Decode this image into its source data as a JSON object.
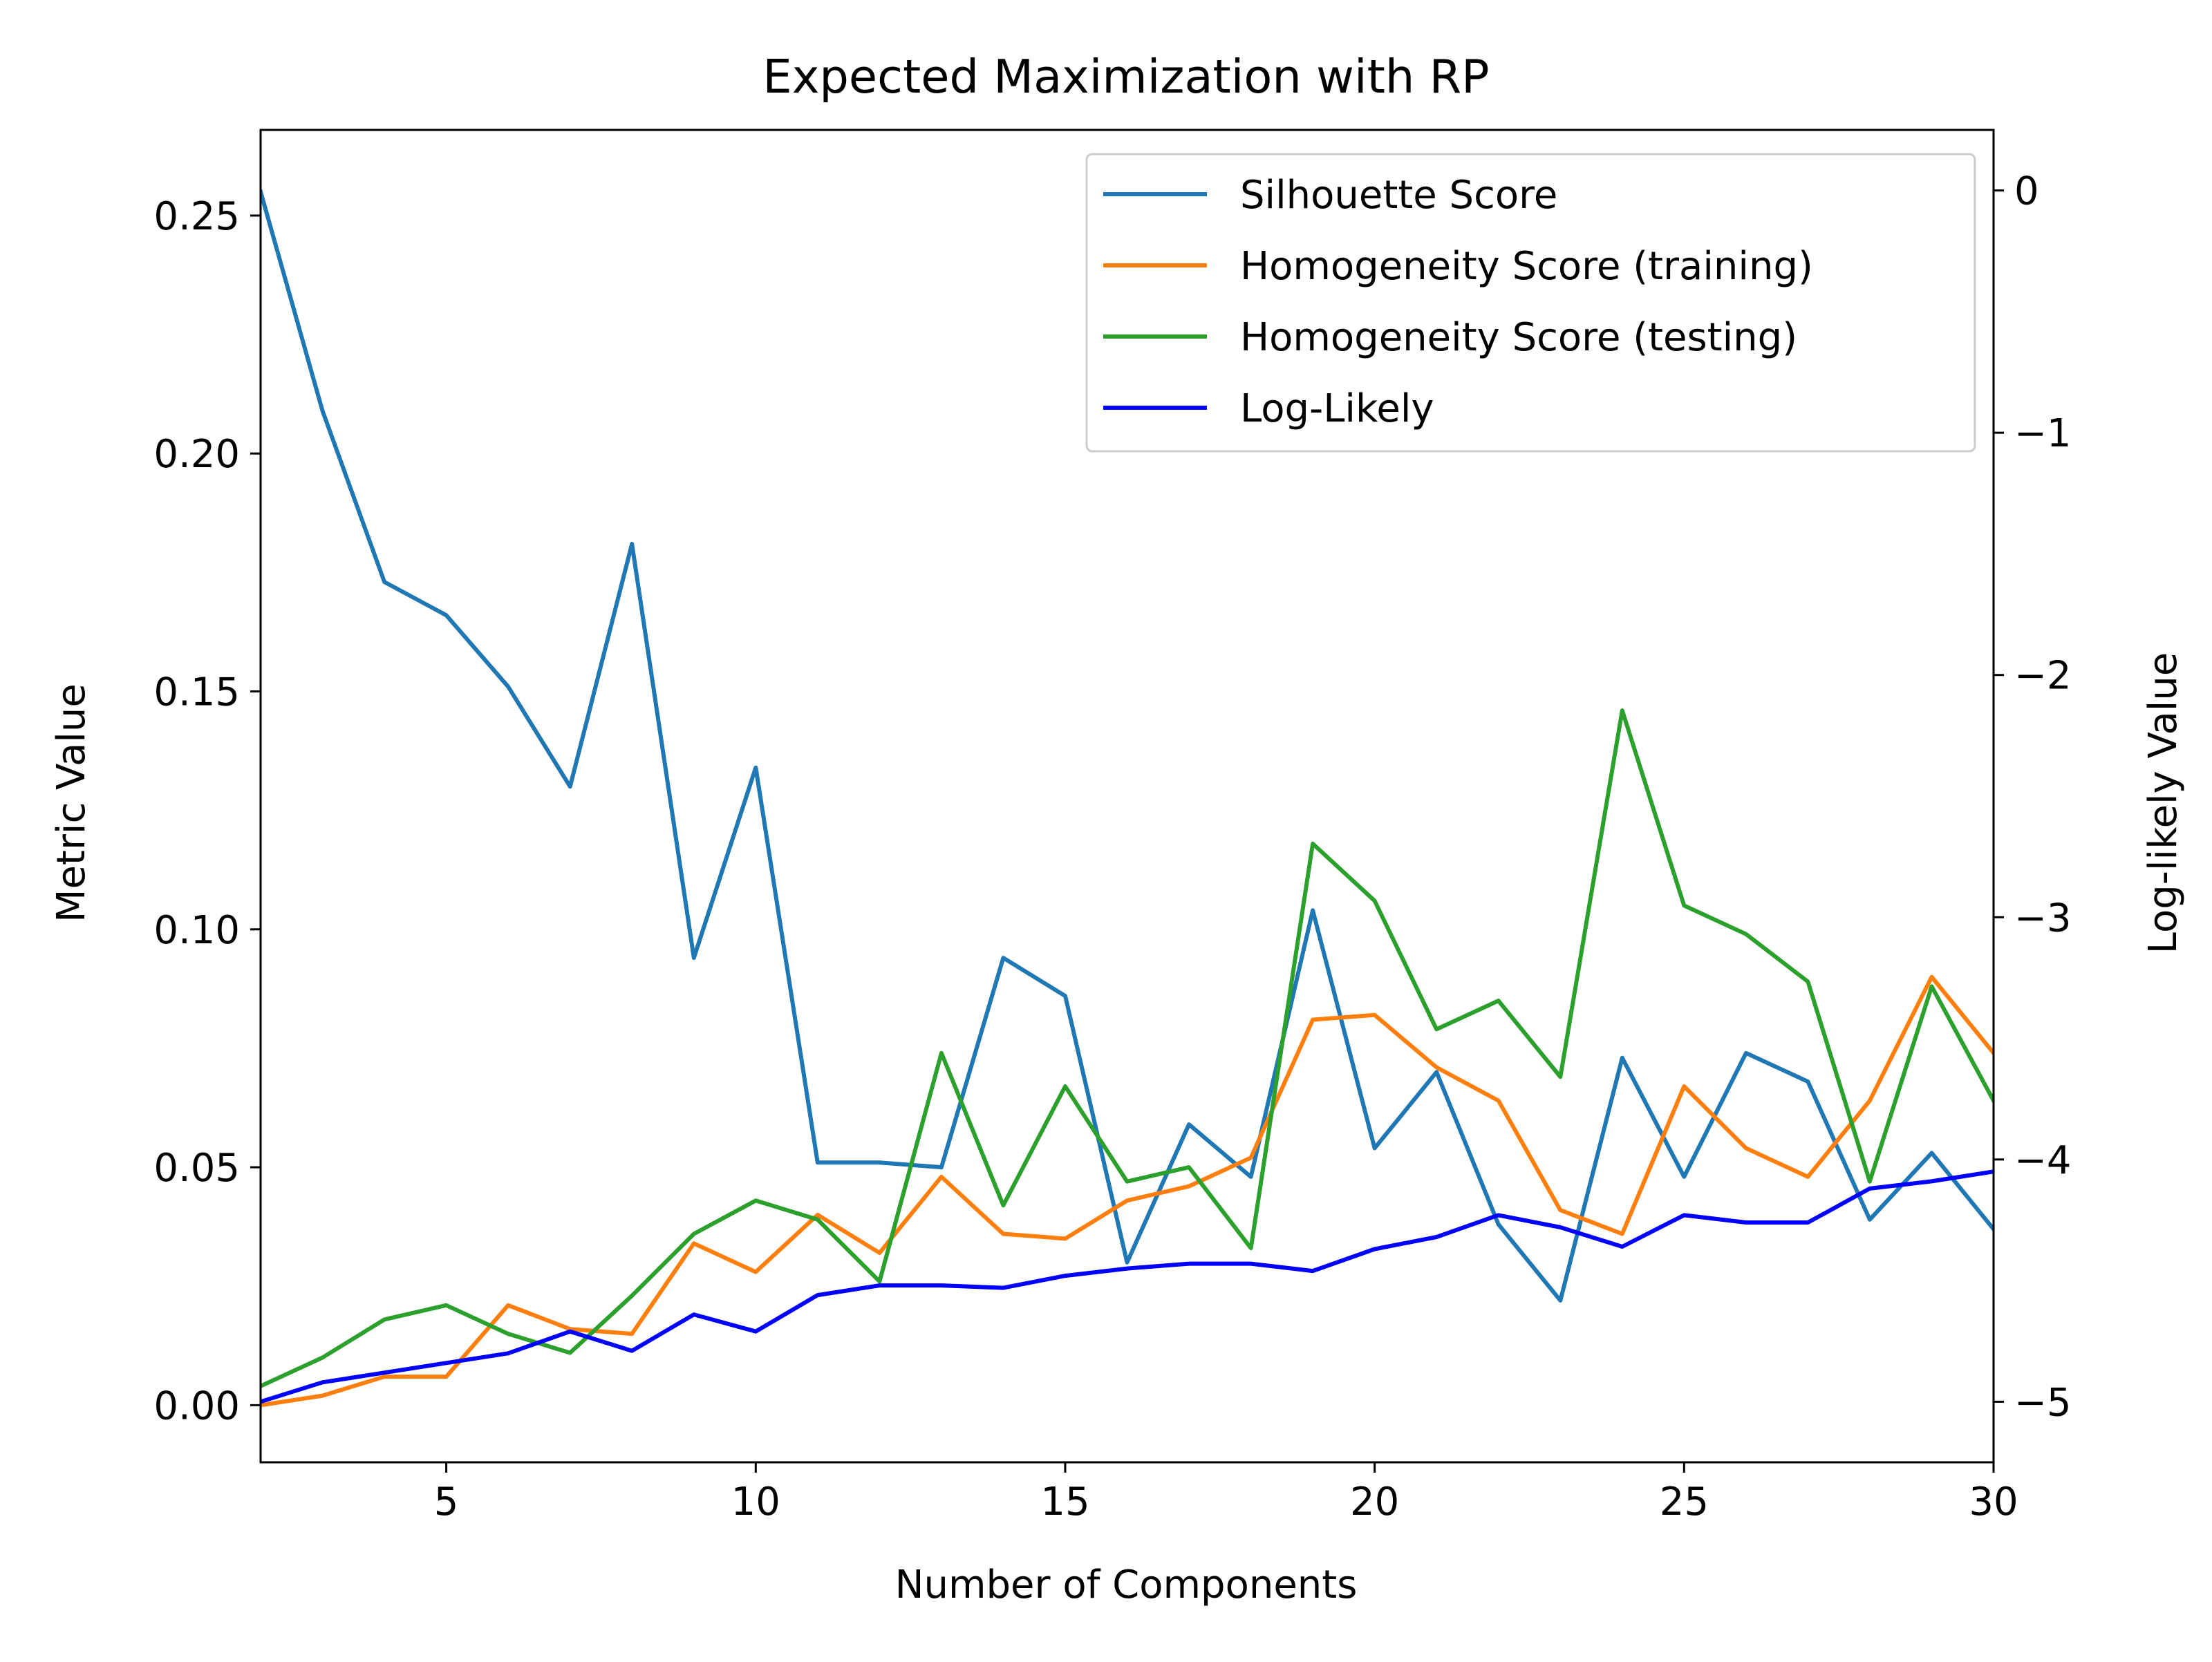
{
  "chart_data": {
    "type": "line",
    "title": "Expected Maximization with RP",
    "xlabel": "Number of Components",
    "ylabel": "Metric Value",
    "y2label": "Log-likely Value",
    "xlim": [
      2,
      30
    ],
    "ylim": [
      -0.012,
      0.268
    ],
    "y2lim": [
      -5.25,
      0.25
    ],
    "xticks": [
      5,
      10,
      15,
      20,
      25,
      30
    ],
    "yticks": [
      0.0,
      0.05,
      0.1,
      0.15,
      0.2,
      0.25
    ],
    "ytick_labels": [
      "0.00",
      "0.05",
      "0.10",
      "0.15",
      "0.20",
      "0.25"
    ],
    "y2ticks": [
      0,
      -1,
      -2,
      -3,
      -4,
      -5
    ],
    "y2tick_labels": [
      "0",
      "−1",
      "−2",
      "−3",
      "−4",
      "−5"
    ],
    "grid": false,
    "legend_position": "top-right",
    "x": [
      2,
      3,
      4,
      5,
      6,
      7,
      8,
      9,
      10,
      11,
      12,
      13,
      14,
      15,
      16,
      17,
      18,
      19,
      20,
      21,
      22,
      23,
      24,
      25,
      26,
      27,
      28,
      29,
      30
    ],
    "series": [
      {
        "name": "Silhouette Score",
        "axis": "left",
        "color": "#1f77b4",
        "values": [
          0.255,
          0.209,
          0.173,
          0.166,
          0.151,
          0.13,
          0.181,
          0.094,
          0.134,
          0.051,
          0.051,
          0.05,
          0.094,
          0.086,
          0.03,
          0.059,
          0.048,
          0.104,
          0.054,
          0.07,
          0.038,
          0.022,
          0.073,
          0.048,
          0.074,
          0.068,
          0.039,
          0.053,
          0.037
        ]
      },
      {
        "name": "Homogeneity Score (training)",
        "axis": "left",
        "color": "#ff7f0e",
        "values": [
          0.0,
          0.002,
          0.006,
          0.006,
          0.021,
          0.016,
          0.015,
          0.034,
          0.028,
          0.04,
          0.032,
          0.048,
          0.036,
          0.035,
          0.043,
          0.046,
          0.052,
          0.081,
          0.082,
          0.071,
          0.064,
          0.041,
          0.036,
          0.067,
          0.054,
          0.048,
          0.064,
          0.09,
          0.074
        ]
      },
      {
        "name": "Homogeneity Score (testing)",
        "axis": "left",
        "color": "#2ca02c",
        "values": [
          0.004,
          0.01,
          0.018,
          0.021,
          0.015,
          0.011,
          0.023,
          0.036,
          0.043,
          0.039,
          0.026,
          0.074,
          0.042,
          0.067,
          0.047,
          0.05,
          0.033,
          0.118,
          0.106,
          0.079,
          0.085,
          0.069,
          0.146,
          0.105,
          0.099,
          0.089,
          0.047,
          0.088,
          0.064
        ]
      },
      {
        "name": "Log-Likely",
        "axis": "right",
        "color": "#0000ff",
        "values": [
          -5.0,
          -4.92,
          -4.88,
          -4.84,
          -4.8,
          -4.71,
          -4.79,
          -4.64,
          -4.71,
          -4.56,
          -4.52,
          -4.52,
          -4.53,
          -4.48,
          -4.45,
          -4.43,
          -4.43,
          -4.46,
          -4.37,
          -4.32,
          -4.23,
          -4.28,
          -4.36,
          -4.23,
          -4.26,
          -4.26,
          -4.12,
          -4.09,
          -4.05
        ]
      }
    ]
  }
}
